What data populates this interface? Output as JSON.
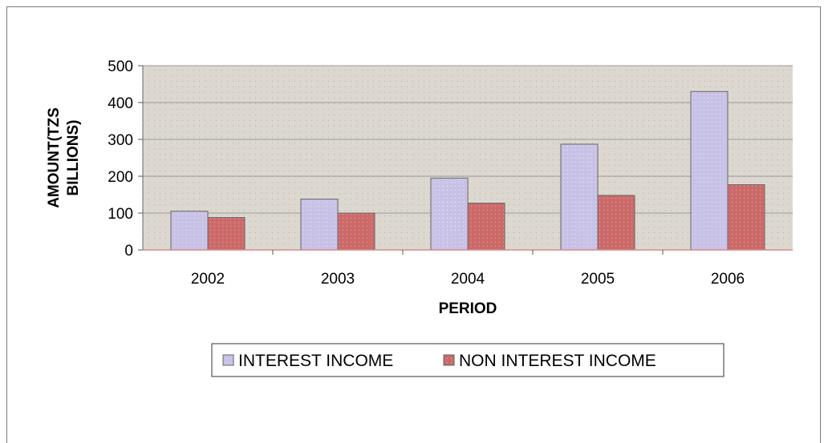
{
  "chart_data": {
    "type": "bar",
    "categories": [
      "2002",
      "2003",
      "2004",
      "2005",
      "2006"
    ],
    "series": [
      {
        "name": "INTEREST INCOME",
        "values": [
          105,
          138,
          195,
          287,
          430
        ]
      },
      {
        "name": "NON INTEREST INCOME",
        "values": [
          88,
          100,
          127,
          148,
          177
        ]
      }
    ],
    "title": "",
    "xlabel": "PERIOD",
    "ylabel": "AMOUNT(TZS BILLIONS)",
    "ylabel_lines": [
      "AMOUNT(TZS",
      "BILLIONS)"
    ],
    "ylim": [
      0,
      500
    ],
    "yticks": [
      "0",
      "100",
      "200",
      "300",
      "400",
      "500"
    ],
    "grid": true,
    "legend_position": "bottom",
    "colors": {
      "series": [
        "#c8c2e6",
        "#cc6a6a"
      ],
      "plot_background": "#dcd8d0",
      "gridline": "#9a9a9a",
      "bar_outline": "#666666"
    }
  }
}
